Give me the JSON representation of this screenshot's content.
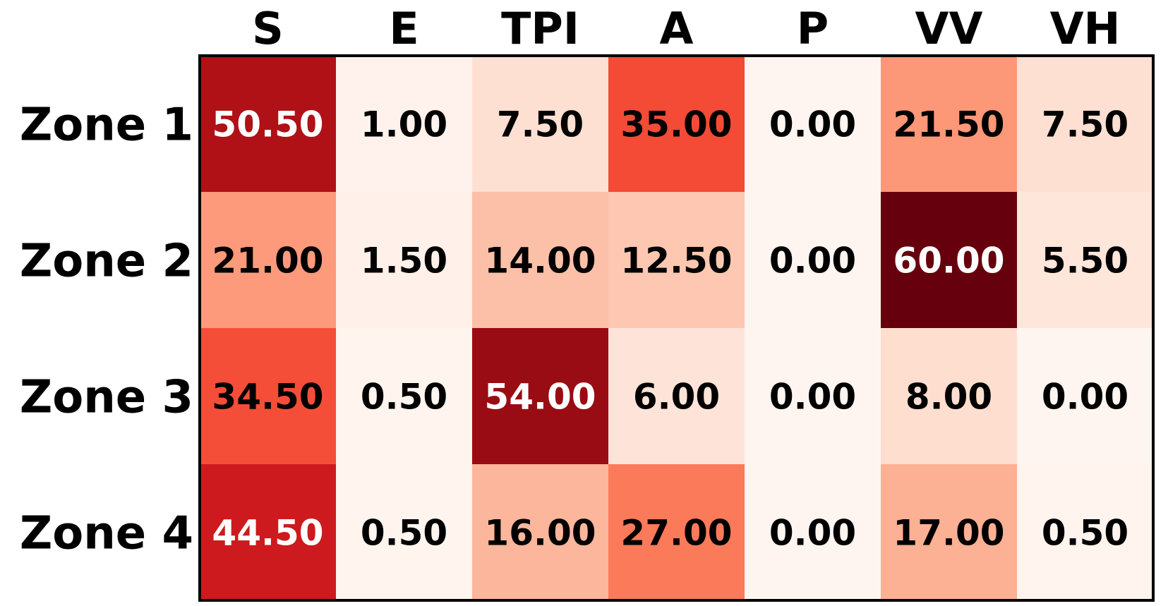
{
  "chart_data": {
    "type": "heatmap",
    "title": "",
    "columns": [
      "S",
      "E",
      "TPI",
      "A",
      "P",
      "VV",
      "VH"
    ],
    "rows": [
      "Zone 1",
      "Zone 2",
      "Zone 3",
      "Zone 4"
    ],
    "values": [
      [
        50.5,
        1.0,
        7.5,
        35.0,
        0.0,
        21.5,
        7.5
      ],
      [
        21.0,
        1.5,
        14.0,
        12.5,
        0.0,
        60.0,
        5.5
      ],
      [
        34.5,
        0.5,
        54.0,
        6.0,
        0.0,
        8.0,
        0.0
      ],
      [
        44.5,
        0.5,
        16.0,
        27.0,
        0.0,
        17.0,
        0.5
      ]
    ],
    "value_labels": [
      [
        "50.50",
        "1.00",
        "7.50",
        "35.00",
        "0.00",
        "21.50",
        "7.50"
      ],
      [
        "21.00",
        "1.50",
        "14.00",
        "12.50",
        "0.00",
        "60.00",
        "5.50"
      ],
      [
        "34.50",
        "0.50",
        "54.00",
        "6.00",
        "0.00",
        "8.00",
        "0.00"
      ],
      [
        "44.50",
        "0.50",
        "16.00",
        "27.00",
        "0.00",
        "17.00",
        "0.50"
      ]
    ],
    "value_range": [
      0,
      60
    ],
    "colormap": "Reds",
    "colors": {
      "low": "#fff5f0",
      "high": "#67000d",
      "border": "#000000",
      "text_dark": "#000000",
      "text_light": "#ffffff"
    }
  }
}
